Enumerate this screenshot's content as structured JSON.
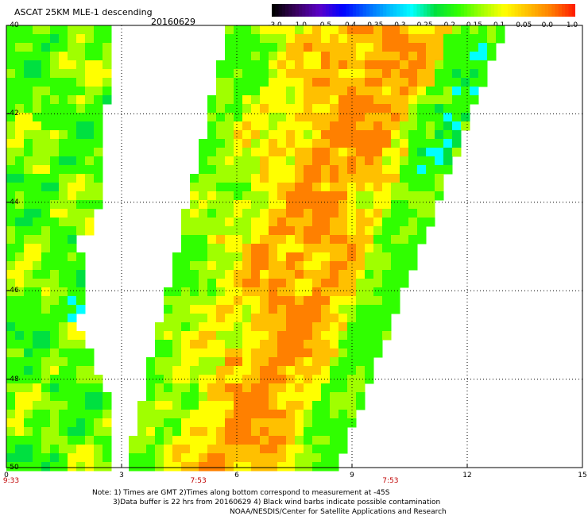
{
  "header": {
    "title": "ASCAT 25KM MLE-1 descending",
    "date": "20160629"
  },
  "colorbar": {
    "labels": [
      "-3.0",
      "-1.0",
      "-0.5",
      "-0.4",
      "-0.35",
      "-0.3",
      "-0.25",
      "-0.2",
      "-0.15",
      "-0.1",
      "-0.05",
      "0.0",
      "1.0"
    ],
    "colors": [
      "#000000",
      "#3a0060",
      "#5a00c8",
      "#0000ff",
      "#0060ff",
      "#00b8ff",
      "#00ffff",
      "#00e040",
      "#30ff00",
      "#a0ff00",
      "#ffff00",
      "#ffc000",
      "#ff8000",
      "#ff2000"
    ]
  },
  "chart_data": {
    "type": "heatmap",
    "title": "ASCAT 25KM MLE-1 descending",
    "xlim": [
      0,
      15
    ],
    "ylim": [
      -50,
      -40
    ],
    "x_ticks": [
      "0",
      "3",
      "6",
      "9",
      "12",
      "15"
    ],
    "y_ticks": [
      "-40",
      "-42",
      "-44",
      "-46",
      "-48",
      "-50"
    ],
    "grid": true,
    "time_labels": [
      {
        "x": 0,
        "text": "9:33"
      },
      {
        "x": 5,
        "text": "7:53"
      },
      {
        "x": 10,
        "text": "7:53"
      }
    ],
    "swaths": [
      {
        "name": "west",
        "edge_left_lon": 0.0,
        "edge_right_lon_top": 2.8,
        "edge_right_lon_bottom": 1.8,
        "dominant_colors": [
          "#30ff00",
          "#a0ff00",
          "#ffff00"
        ]
      },
      {
        "name": "east",
        "edge_left_lon_top": 5.8,
        "edge_left_lon_bottom": 3.1,
        "edge_right_lon_top": 13.0,
        "edge_right_lon_bottom": 8.6,
        "dominant_colors": [
          "#ffc000",
          "#ff8000",
          "#ffff00",
          "#a0ff00"
        ]
      }
    ]
  },
  "footer": {
    "line1": "Note: 1) Times are GMT 2)Times along bottom correspond to measurement at -45S",
    "line2": "3)Data buffer is 22 hrs from 20160629 4) Black wind barbs indicate possible contamination",
    "line3": "NOAA/NESDIS/Center for Satellite Applications and Research"
  }
}
